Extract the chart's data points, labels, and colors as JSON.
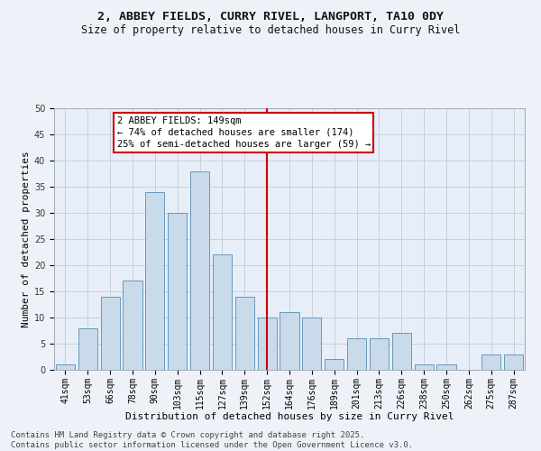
{
  "title1": "2, ABBEY FIELDS, CURRY RIVEL, LANGPORT, TA10 0DY",
  "title2": "Size of property relative to detached houses in Curry Rivel",
  "xlabel": "Distribution of detached houses by size in Curry Rivel",
  "ylabel": "Number of detached properties",
  "categories": [
    "41sqm",
    "53sqm",
    "66sqm",
    "78sqm",
    "90sqm",
    "103sqm",
    "115sqm",
    "127sqm",
    "139sqm",
    "152sqm",
    "164sqm",
    "176sqm",
    "189sqm",
    "201sqm",
    "213sqm",
    "226sqm",
    "238sqm",
    "250sqm",
    "262sqm",
    "275sqm",
    "287sqm"
  ],
  "values": [
    1,
    8,
    14,
    17,
    34,
    30,
    38,
    22,
    14,
    10,
    11,
    10,
    2,
    6,
    6,
    7,
    1,
    1,
    0,
    3,
    3
  ],
  "bar_color": "#c9daea",
  "bar_edge_color": "#6699bb",
  "vline_x": 9.0,
  "vline_color": "#cc0000",
  "annotation_text": "2 ABBEY FIELDS: 149sqm\n← 74% of detached houses are smaller (174)\n25% of semi-detached houses are larger (59) →",
  "annotation_box_color": "#ffffff",
  "annotation_box_edge": "#cc0000",
  "ylim": [
    0,
    50
  ],
  "yticks": [
    0,
    5,
    10,
    15,
    20,
    25,
    30,
    35,
    40,
    45,
    50
  ],
  "grid_color": "#c0ccd8",
  "bg_color": "#e8eef8",
  "fig_bg_color": "#eef2f8",
  "footer": "Contains HM Land Registry data © Crown copyright and database right 2025.\nContains public sector information licensed under the Open Government Licence v3.0.",
  "title1_fontsize": 9.5,
  "title2_fontsize": 8.5,
  "xlabel_fontsize": 8,
  "ylabel_fontsize": 8,
  "tick_fontsize": 7,
  "annotation_fontsize": 7.5,
  "footer_fontsize": 6.5
}
